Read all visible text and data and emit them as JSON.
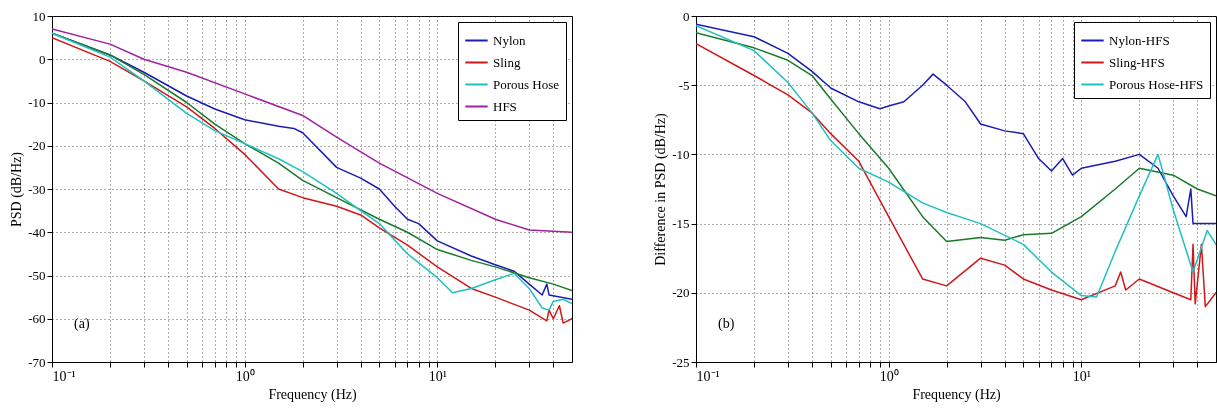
{
  "chart_data": [
    {
      "type": "line",
      "xlabel": "Frequency (Hz)",
      "ylabel": "PSD (dB/Hz)",
      "log": "x",
      "grid": true,
      "legend": "top right",
      "line_style": "solid",
      "marker": "none",
      "xlim": [
        0.1,
        50
      ],
      "ylim": [
        -70,
        10
      ],
      "yticks": [
        -70,
        -60,
        -50,
        -40,
        -30,
        -20,
        -10,
        0,
        10
      ],
      "xticks": [
        {
          "value": 0.1,
          "label": "10⁻¹"
        },
        {
          "value": 0.2,
          "label": null
        },
        {
          "value": 0.3,
          "label": null
        },
        {
          "value": 0.4,
          "label": null
        },
        {
          "value": 0.5,
          "label": null
        },
        {
          "value": 0.6,
          "label": null
        },
        {
          "value": 0.7,
          "label": null
        },
        {
          "value": 0.8,
          "label": null
        },
        {
          "value": 0.9,
          "label": null
        },
        {
          "value": 1,
          "label": "10⁰"
        },
        {
          "value": 2,
          "label": null
        },
        {
          "value": 3,
          "label": null
        },
        {
          "value": 4,
          "label": null
        },
        {
          "value": 5,
          "label": null
        },
        {
          "value": 6,
          "label": null
        },
        {
          "value": 7,
          "label": null
        },
        {
          "value": 8,
          "label": null
        },
        {
          "value": 9,
          "label": null
        },
        {
          "value": 10,
          "label": "10¹"
        },
        {
          "value": 20,
          "label": null
        },
        {
          "value": 30,
          "label": null
        },
        {
          "value": 40,
          "label": null
        }
      ],
      "annotations": [
        "(a)"
      ],
      "series": [
        {
          "name": "Nylon",
          "color": "#1c1cb4",
          "x": [
            0.1,
            0.2,
            0.3,
            0.5,
            0.7,
            1,
            1.5,
            1.8,
            2,
            3,
            4,
            5,
            6,
            7,
            8,
            10,
            15,
            20,
            25,
            30,
            35,
            37,
            38,
            50
          ],
          "values": [
            6,
            1,
            -3,
            -8.5,
            -11.5,
            -14,
            -15.5,
            -16,
            -17,
            -25,
            -27.5,
            -30,
            -34,
            -37,
            -38,
            -42,
            -45.5,
            -47.5,
            -49,
            -52,
            -54.5,
            -52,
            -54.5,
            -55.5
          ]
        },
        {
          "color": "#1a7a2a",
          "x": [
            0.1,
            0.2,
            0.3,
            0.5,
            0.7,
            1,
            1.5,
            2,
            3,
            5,
            7,
            10,
            15,
            20,
            30,
            40,
            50
          ],
          "values": [
            6,
            1,
            -3.5,
            -10,
            -15,
            -19.5,
            -24,
            -28,
            -32,
            -37,
            -40,
            -44,
            -46.5,
            -48,
            -50.5,
            -52,
            -53.5
          ]
        },
        {
          "name": "Sling",
          "color": "#d01818",
          "x": [
            0.1,
            0.2,
            0.3,
            0.5,
            0.7,
            1,
            1.5,
            2,
            3,
            4,
            5,
            7,
            10,
            15,
            20,
            30,
            37,
            38,
            40,
            43,
            45,
            50
          ],
          "values": [
            5,
            -0.5,
            -5,
            -11,
            -16,
            -22,
            -30,
            -32,
            -34,
            -36,
            -39,
            -43,
            -48,
            -53,
            -55,
            -58,
            -60.5,
            -58,
            -60,
            -57,
            -61,
            -60
          ]
        },
        {
          "name": "Porous Hose",
          "color": "#20c0c0",
          "x": [
            0.1,
            0.2,
            0.3,
            0.5,
            0.7,
            1,
            1.5,
            2,
            3,
            4,
            5,
            7,
            10,
            12,
            15,
            20,
            25,
            30,
            35,
            38,
            40,
            45,
            50
          ],
          "values": [
            6,
            0.5,
            -5,
            -12.5,
            -16.5,
            -19.5,
            -23,
            -26,
            -31,
            -35,
            -38,
            -45,
            -50.5,
            -54,
            -53,
            -51,
            -49.5,
            -53,
            -57.5,
            -58,
            -56,
            -55.5,
            -56.5
          ]
        },
        {
          "name": "HFS",
          "color": "#a020a0",
          "x": [
            0.1,
            0.2,
            0.3,
            0.5,
            1,
            2,
            3,
            5,
            10,
            20,
            30,
            50
          ],
          "values": [
            7,
            3.5,
            0,
            -3,
            -8,
            -13,
            -18,
            -24,
            -31,
            -37,
            -39.5,
            -40
          ]
        }
      ]
    },
    {
      "type": "line",
      "xlabel": "Frequency (Hz)",
      "ylabel": "Difference in PSD (dB/Hz)",
      "log": "x",
      "grid": true,
      "legend": "top right",
      "line_style": "solid",
      "marker": "none",
      "xlim": [
        0.1,
        50
      ],
      "ylim": [
        -25,
        0
      ],
      "yticks": [
        -25,
        -20,
        -15,
        -10,
        -5,
        0
      ],
      "xticks": [
        {
          "value": 0.1,
          "label": "10⁻¹"
        },
        {
          "value": 0.2,
          "label": null
        },
        {
          "value": 0.3,
          "label": null
        },
        {
          "value": 0.4,
          "label": null
        },
        {
          "value": 0.5,
          "label": null
        },
        {
          "value": 0.6,
          "label": null
        },
        {
          "value": 0.7,
          "label": null
        },
        {
          "value": 0.8,
          "label": null
        },
        {
          "value": 0.9,
          "label": null
        },
        {
          "value": 1,
          "label": "10⁰"
        },
        {
          "value": 2,
          "label": null
        },
        {
          "value": 3,
          "label": null
        },
        {
          "value": 4,
          "label": null
        },
        {
          "value": 5,
          "label": null
        },
        {
          "value": 6,
          "label": null
        },
        {
          "value": 7,
          "label": null
        },
        {
          "value": 8,
          "label": null
        },
        {
          "value": 9,
          "label": null
        },
        {
          "value": 10,
          "label": "10¹"
        },
        {
          "value": 20,
          "label": null
        },
        {
          "value": 30,
          "label": null
        },
        {
          "value": 40,
          "label": null
        }
      ],
      "annotations": [
        "(b)"
      ],
      "series": [
        {
          "name": "Nylon-HFS",
          "color": "#1c1cb4",
          "x": [
            0.1,
            0.2,
            0.3,
            0.4,
            0.5,
            0.7,
            0.9,
            1,
            1.2,
            1.5,
            1.7,
            2,
            2.5,
            3,
            4,
            5,
            6,
            7,
            8,
            9,
            10,
            15,
            20,
            25,
            30,
            35,
            37,
            38,
            50
          ],
          "values": [
            -0.6,
            -1.5,
            -2.7,
            -4,
            -5.2,
            -6.2,
            -6.7,
            -6.5,
            -6.2,
            -5,
            -4.2,
            -5,
            -6.2,
            -7.8,
            -8.3,
            -8.5,
            -10.3,
            -11.2,
            -10.3,
            -11.5,
            -11,
            -10.5,
            -10,
            -11,
            -13,
            -14.5,
            -12.5,
            -15,
            -15
          ]
        },
        {
          "color": "#1a7a2a",
          "x": [
            0.1,
            0.2,
            0.3,
            0.4,
            0.5,
            0.7,
            1,
            1.5,
            2,
            3,
            4,
            5,
            7,
            10,
            15,
            20,
            30,
            40,
            50
          ],
          "values": [
            -1.2,
            -2.3,
            -3.2,
            -4.3,
            -6,
            -8.5,
            -11,
            -14.5,
            -16.3,
            -16,
            -16.2,
            -15.8,
            -15.7,
            -14.5,
            -12.5,
            -11,
            -11.5,
            -12.5,
            -13
          ]
        },
        {
          "name": "Sling-HFS",
          "color": "#d01818",
          "x": [
            0.1,
            0.2,
            0.3,
            0.4,
            0.5,
            0.7,
            1,
            1.5,
            2,
            3,
            4,
            5,
            7,
            10,
            15,
            16,
            17,
            20,
            30,
            37,
            38,
            39,
            42,
            44,
            50
          ],
          "values": [
            -2,
            -4.3,
            -5.7,
            -7,
            -8.5,
            -10.5,
            -14.5,
            -19,
            -19.5,
            -17.5,
            -18,
            -19,
            -19.8,
            -20.5,
            -19.5,
            -18.5,
            -19.8,
            -19,
            -20,
            -20.5,
            -16.5,
            -20.8,
            -16.5,
            -21,
            -20
          ]
        },
        {
          "name": "Porous Hose-HFS",
          "color": "#20c0c0",
          "x": [
            0.1,
            0.2,
            0.3,
            0.4,
            0.5,
            0.7,
            1,
            1.5,
            2,
            3,
            5,
            7,
            10,
            12,
            15,
            20,
            25,
            30,
            38,
            45,
            50
          ],
          "values": [
            -0.7,
            -2.5,
            -4.8,
            -7,
            -9,
            -11,
            -12,
            -13.5,
            -14.2,
            -15,
            -16.5,
            -18.5,
            -20.2,
            -20.3,
            -17,
            -13,
            -10,
            -14,
            -18.5,
            -15.5,
            -16.5
          ]
        }
      ]
    }
  ]
}
